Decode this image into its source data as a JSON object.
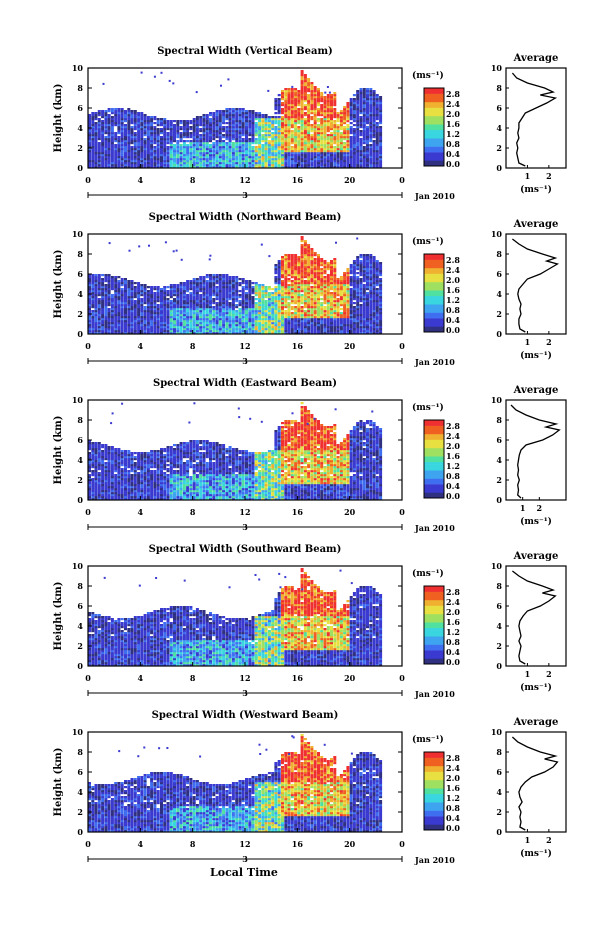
{
  "figure": {
    "x_axis_title": "Local Time",
    "average_title": "Average",
    "colorbar_unit": "(ms⁻¹)",
    "average_unit": "(ms⁻¹)",
    "date_label": "Jan 2010",
    "day_label": "3",
    "height_axis_title": "Height (km)"
  },
  "colors": {
    "colormap": [
      "#303080",
      "#3a3ad0",
      "#3f6ef0",
      "#3fa4f0",
      "#39d6e0",
      "#50e0a0",
      "#a0e060",
      "#e8e040",
      "#f0b030",
      "#f06020",
      "#f03030"
    ]
  },
  "chart_data": [
    {
      "type": "heatmap",
      "title": "Spectral Width (Vertical Beam)",
      "ylabel": "Height (km)",
      "xlim": [
        0,
        24
      ],
      "ylim": [
        0,
        10
      ],
      "x_ticks": [
        "0",
        "4",
        "8",
        "12",
        "16",
        "20",
        "0"
      ],
      "y_ticks": [
        "0",
        "2",
        "4",
        "6",
        "8",
        "10"
      ],
      "colorbar_ticks": [
        "0.0",
        "0.4",
        "0.8",
        "1.2",
        "1.6",
        "2.0",
        "2.4",
        "2.8"
      ],
      "colorbar_range": [
        0,
        2.8
      ],
      "average_profile": {
        "x_ticks": [
          "1",
          "2"
        ],
        "xlim": [
          0,
          2.8
        ],
        "ylim": [
          0,
          10
        ],
        "height": [
          0.2,
          0.5,
          1,
          1.5,
          2,
          2.5,
          3,
          3.5,
          4,
          4.5,
          5,
          5.5,
          6,
          6.5,
          7,
          7.3,
          7.6,
          8,
          8.5,
          9,
          9.5
        ],
        "value": [
          0.9,
          0.6,
          0.55,
          0.5,
          0.55,
          0.5,
          0.6,
          0.55,
          0.6,
          0.6,
          0.75,
          0.9,
          1.4,
          1.9,
          2.3,
          1.6,
          2.2,
          1.8,
          1.0,
          0.5,
          0.3
        ]
      }
    },
    {
      "type": "heatmap",
      "title": "Spectral Width (Northward Beam)",
      "ylabel": "Height (km)",
      "xlim": [
        0,
        24
      ],
      "ylim": [
        0,
        10
      ],
      "x_ticks": [
        "0",
        "4",
        "8",
        "12",
        "16",
        "20",
        "0"
      ],
      "y_ticks": [
        "0",
        "2",
        "4",
        "6",
        "8",
        "10"
      ],
      "colorbar_ticks": [
        "0.0",
        "0.4",
        "0.8",
        "1.2",
        "1.6",
        "2.0",
        "2.4",
        "2.8"
      ],
      "colorbar_range": [
        0,
        2.8
      ],
      "average_profile": {
        "x_ticks": [
          "1",
          "2"
        ],
        "xlim": [
          0,
          2.8
        ],
        "ylim": [
          0,
          10
        ],
        "height": [
          0.2,
          0.5,
          1,
          1.5,
          2,
          2.5,
          3,
          3.5,
          4,
          4.5,
          5,
          5.5,
          6,
          6.5,
          7,
          7.3,
          7.6,
          8,
          8.5,
          9,
          9.5
        ],
        "value": [
          0.9,
          0.65,
          0.6,
          0.6,
          0.7,
          0.65,
          0.7,
          0.6,
          0.55,
          0.6,
          0.8,
          1.0,
          1.6,
          2.0,
          2.4,
          1.9,
          2.3,
          1.7,
          1.0,
          0.6,
          0.3
        ]
      }
    },
    {
      "type": "heatmap",
      "title": "Spectral Width (Eastward Beam)",
      "ylabel": "Height (km)",
      "xlim": [
        0,
        24
      ],
      "ylim": [
        0,
        10
      ],
      "x_ticks": [
        "0",
        "4",
        "8",
        "12",
        "16",
        "20",
        "0"
      ],
      "y_ticks": [
        "0",
        "2",
        "4",
        "6",
        "8",
        "10"
      ],
      "colorbar_ticks": [
        "0.0",
        "0.4",
        "0.8",
        "1.2",
        "1.6",
        "2.0",
        "2.4",
        "2.8"
      ],
      "colorbar_range": [
        0,
        2.8
      ],
      "average_profile": {
        "x_ticks": [
          "1",
          "2"
        ],
        "xlim": [
          0,
          3.6
        ],
        "ylim": [
          0,
          10
        ],
        "height": [
          0.2,
          0.5,
          1,
          1.5,
          2,
          2.5,
          3,
          3.5,
          4,
          4.5,
          5,
          5.5,
          6,
          6.5,
          7,
          7.3,
          7.6,
          8,
          8.5,
          9,
          9.5
        ],
        "value": [
          0.9,
          0.7,
          0.75,
          0.7,
          0.8,
          0.7,
          0.75,
          0.7,
          0.75,
          0.8,
          0.9,
          1.2,
          2.2,
          2.8,
          3.2,
          2.4,
          3.0,
          2.0,
          1.2,
          0.6,
          0.3
        ]
      }
    },
    {
      "type": "heatmap",
      "title": "Spectral Width (Southward Beam)",
      "ylabel": "Height (km)",
      "xlim": [
        0,
        24
      ],
      "ylim": [
        0,
        10
      ],
      "x_ticks": [
        "0",
        "4",
        "8",
        "12",
        "16",
        "20",
        "0"
      ],
      "y_ticks": [
        "0",
        "2",
        "4",
        "6",
        "8",
        "10"
      ],
      "colorbar_ticks": [
        "0.0",
        "0.4",
        "0.8",
        "1.2",
        "1.6",
        "2.0",
        "2.4",
        "2.8"
      ],
      "colorbar_range": [
        0,
        2.8
      ],
      "average_profile": {
        "x_ticks": [
          "1",
          "2"
        ],
        "xlim": [
          0,
          2.8
        ],
        "ylim": [
          0,
          10
        ],
        "height": [
          0.2,
          0.5,
          1,
          1.5,
          2,
          2.5,
          3,
          3.5,
          4,
          4.5,
          5,
          5.5,
          6,
          6.5,
          7,
          7.3,
          7.6,
          8,
          8.5,
          9,
          9.5
        ],
        "value": [
          0.9,
          0.65,
          0.6,
          0.65,
          0.7,
          0.6,
          0.7,
          0.65,
          0.6,
          0.65,
          0.8,
          1.0,
          1.6,
          2.0,
          2.3,
          1.7,
          2.2,
          1.7,
          1.0,
          0.6,
          0.3
        ]
      }
    },
    {
      "type": "heatmap",
      "title": "Spectral Width (Westward Beam)",
      "ylabel": "Height (km)",
      "xlim": [
        0,
        24
      ],
      "ylim": [
        0,
        10
      ],
      "x_ticks": [
        "0",
        "4",
        "8",
        "12",
        "16",
        "20",
        "0"
      ],
      "y_ticks": [
        "0",
        "2",
        "4",
        "6",
        "8",
        "10"
      ],
      "colorbar_ticks": [
        "0.0",
        "0.4",
        "0.8",
        "1.2",
        "1.6",
        "2.0",
        "2.4",
        "2.8"
      ],
      "colorbar_range": [
        0,
        2.8
      ],
      "average_profile": {
        "x_ticks": [
          "1",
          "2"
        ],
        "xlim": [
          0,
          2.8
        ],
        "ylim": [
          0,
          10
        ],
        "height": [
          0.2,
          0.5,
          1,
          1.5,
          2,
          2.5,
          3,
          3.5,
          4,
          4.5,
          5,
          5.5,
          6,
          6.5,
          7,
          7.3,
          7.6,
          8,
          8.5,
          9,
          9.5
        ],
        "value": [
          0.9,
          0.65,
          0.7,
          0.65,
          0.7,
          0.6,
          0.75,
          0.65,
          0.6,
          0.7,
          0.9,
          1.2,
          1.8,
          2.2,
          2.4,
          1.8,
          2.3,
          1.6,
          1.0,
          0.55,
          0.3
        ]
      }
    }
  ]
}
